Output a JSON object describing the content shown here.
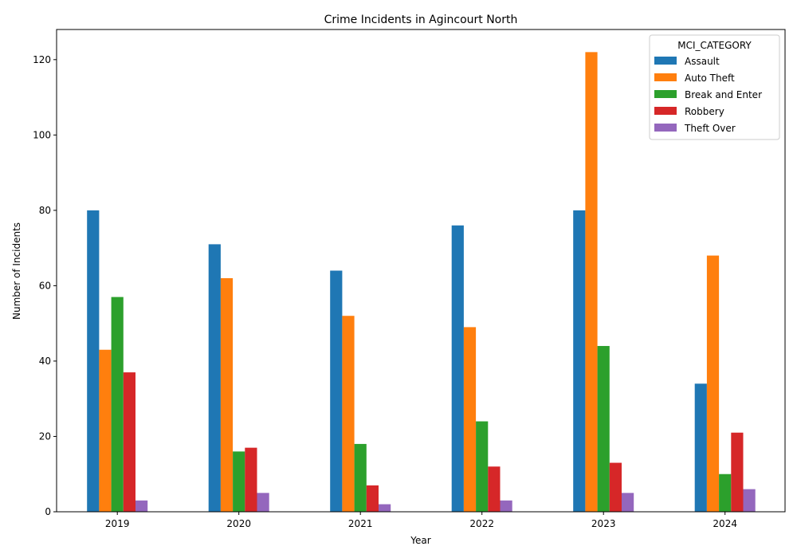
{
  "chart_data": {
    "type": "bar",
    "title": "Crime Incidents in Agincourt North",
    "xlabel": "Year",
    "ylabel": "Number of Incidents",
    "categories": [
      "2019",
      "2020",
      "2021",
      "2022",
      "2023",
      "2024"
    ],
    "ylim": [
      0,
      128
    ],
    "yticks": [
      0,
      20,
      40,
      60,
      80,
      100,
      120
    ],
    "grid": false,
    "legend": {
      "title": "MCI_CATEGORY",
      "placement": "top-right"
    },
    "series": [
      {
        "name": "Assault",
        "color": "#1f77b4",
        "values": [
          80,
          71,
          64,
          76,
          80,
          34
        ]
      },
      {
        "name": "Auto Theft",
        "color": "#ff7f0e",
        "values": [
          43,
          62,
          52,
          49,
          122,
          68
        ]
      },
      {
        "name": "Break and Enter",
        "color": "#2ca02c",
        "values": [
          57,
          16,
          18,
          24,
          44,
          10
        ]
      },
      {
        "name": "Robbery",
        "color": "#d62728",
        "values": [
          37,
          17,
          7,
          12,
          13,
          21
        ]
      },
      {
        "name": "Theft Over",
        "color": "#9467bd",
        "values": [
          3,
          5,
          2,
          3,
          5,
          6
        ]
      }
    ]
  }
}
